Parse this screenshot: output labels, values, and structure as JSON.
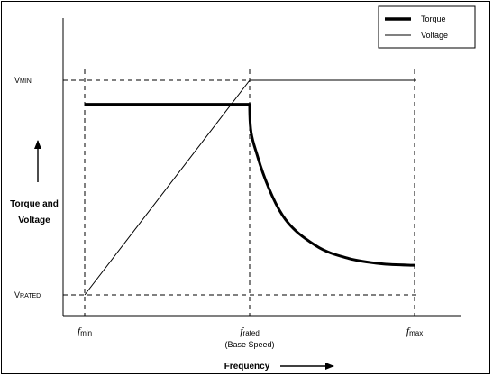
{
  "chart_data": {
    "type": "line",
    "x_ticks": [
      {
        "key": "f_min",
        "main": "f",
        "sub": "min",
        "caption": ""
      },
      {
        "key": "f_rated",
        "main": "f",
        "sub": "rated",
        "caption": "(Base Speed)"
      },
      {
        "key": "f_max",
        "main": "f",
        "sub": "max",
        "caption": ""
      }
    ],
    "y_ticks": [
      {
        "key": "v_rated",
        "main": "V",
        "small": "RATED"
      },
      {
        "key": "v_min",
        "main": "V",
        "small": "MIN"
      }
    ],
    "xlabel": "Frequency",
    "ylabel_lines": [
      "Torque and",
      "Voltage"
    ],
    "x_domain": [
      0,
      2
    ],
    "y_domain": [
      0,
      1
    ],
    "series": [
      {
        "name": "Torque",
        "style": "thick",
        "color": "#000000",
        "points": [
          [
            0,
            0.888
          ],
          [
            1,
            0.888
          ],
          [
            1.05,
            0.64
          ],
          [
            1.2,
            0.37
          ],
          [
            1.4,
            0.23
          ],
          [
            1.6,
            0.17
          ],
          [
            1.8,
            0.145
          ],
          [
            2,
            0.138
          ]
        ]
      },
      {
        "name": "Voltage",
        "style": "thin",
        "color": "#000000",
        "points": [
          [
            0,
            0
          ],
          [
            1,
            1
          ],
          [
            2,
            1
          ]
        ]
      }
    ],
    "reference_lines": {
      "horizontal_at_y": [
        0,
        1
      ],
      "vertical_at_x": [
        0,
        1,
        2
      ],
      "style": "dashed"
    },
    "legend": {
      "placement": "top-right",
      "entries": [
        {
          "label": "Torque",
          "style": "thick"
        },
        {
          "label": "Voltage",
          "style": "thin"
        }
      ]
    }
  }
}
